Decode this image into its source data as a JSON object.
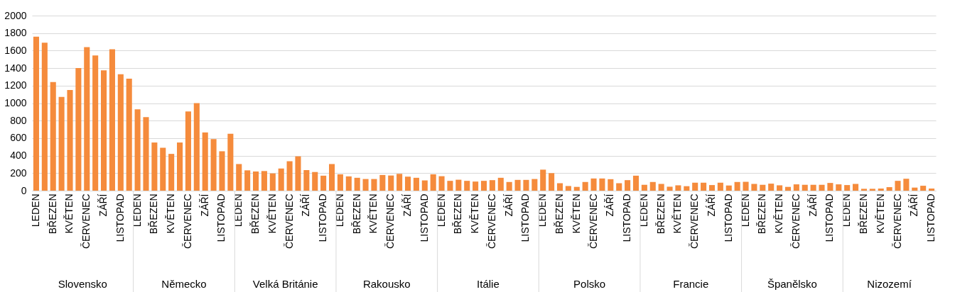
{
  "chart_data": {
    "type": "bar",
    "categories": [
      "LEDEN",
      null,
      "BŘEZEN",
      null,
      "KVĚTEN",
      null,
      "ČERVENEC",
      null,
      "ZÁŘÍ",
      null,
      "LISTOPAD",
      null,
      "LEDEN",
      null,
      "BŘEZEN",
      null,
      "KVĚTEN",
      null,
      "ČERVENEC",
      null,
      "ZÁŘÍ",
      null,
      "LISTOPAD",
      null,
      "LEDEN",
      null,
      "BŘEZEN",
      null,
      "KVĚTEN",
      null,
      "ČERVENEC",
      null,
      "ZÁŘÍ",
      null,
      "LISTOPAD",
      null,
      "LEDEN",
      null,
      "BŘEZEN",
      null,
      "KVĚTEN",
      null,
      "ČERVENEC",
      null,
      "ZÁŘÍ",
      null,
      "LISTOPAD",
      null,
      "LEDEN",
      null,
      "BŘEZEN",
      null,
      "KVĚTEN",
      null,
      "ČERVENEC",
      null,
      "ZÁŘÍ",
      null,
      "LISTOPAD",
      null,
      "LEDEN",
      null,
      "BŘEZEN",
      null,
      "KVĚTEN",
      null,
      "ČERVENEC",
      null,
      "ZÁŘÍ",
      null,
      "LISTOPAD",
      null,
      "LEDEN",
      null,
      "BŘEZEN",
      null,
      "KVĚTEN",
      null,
      "ČERVENEC",
      null,
      "ZÁŘÍ",
      null,
      "LISTOPAD",
      null,
      "LEDEN",
      null,
      "BŘEZEN",
      null,
      "KVĚTEN",
      null,
      "ČERVENEC",
      null,
      "ZÁŘÍ",
      null,
      "LISTOPAD",
      null,
      "LEDEN",
      null,
      "BŘEZEN",
      null,
      "KVĚTEN",
      null,
      "ČERVENEC",
      null,
      "ZÁŘÍ",
      null,
      "LISTOPAD"
    ],
    "series": [
      {
        "color": "#f58b3c",
        "values": [
          1760,
          1690,
          1240,
          1070,
          1150,
          1400,
          1640,
          1545,
          1375,
          1615,
          1330,
          1280,
          930,
          840,
          550,
          490,
          420,
          550,
          905,
          1000,
          665,
          590,
          450,
          650,
          304,
          232,
          219,
          224,
          197,
          253,
          336,
          392,
          235,
          213,
          171,
          304,
          187,
          163,
          147,
          133,
          133,
          179,
          173,
          192,
          160,
          147,
          117,
          187,
          165,
          112,
          125,
          112,
          104,
          112,
          120,
          147,
          99,
          123,
          123,
          133,
          240,
          200,
          85,
          53,
          43,
          99,
          139,
          139,
          131,
          85,
          120,
          171,
          67,
          99,
          77,
          45,
          61,
          51,
          91,
          91,
          64,
          91,
          59,
          99,
          101,
          77,
          67,
          80,
          61,
          43,
          72,
          67,
          67,
          67,
          88,
          72,
          64,
          77,
          21,
          21,
          24,
          40,
          112,
          136,
          35,
          56,
          24
        ]
      }
    ],
    "annotations": [
      "Slovensko",
      "Německo",
      "Velká Británie",
      "Rakousko",
      "Itálie",
      "Polsko",
      "Francie",
      "Španělsko",
      "Nizozemí"
    ],
    "ylim": [
      0,
      2000
    ],
    "yticks": [
      0,
      200,
      400,
      600,
      800,
      1000,
      1200,
      1400,
      1600,
      1800,
      2000
    ],
    "grid": "y"
  }
}
